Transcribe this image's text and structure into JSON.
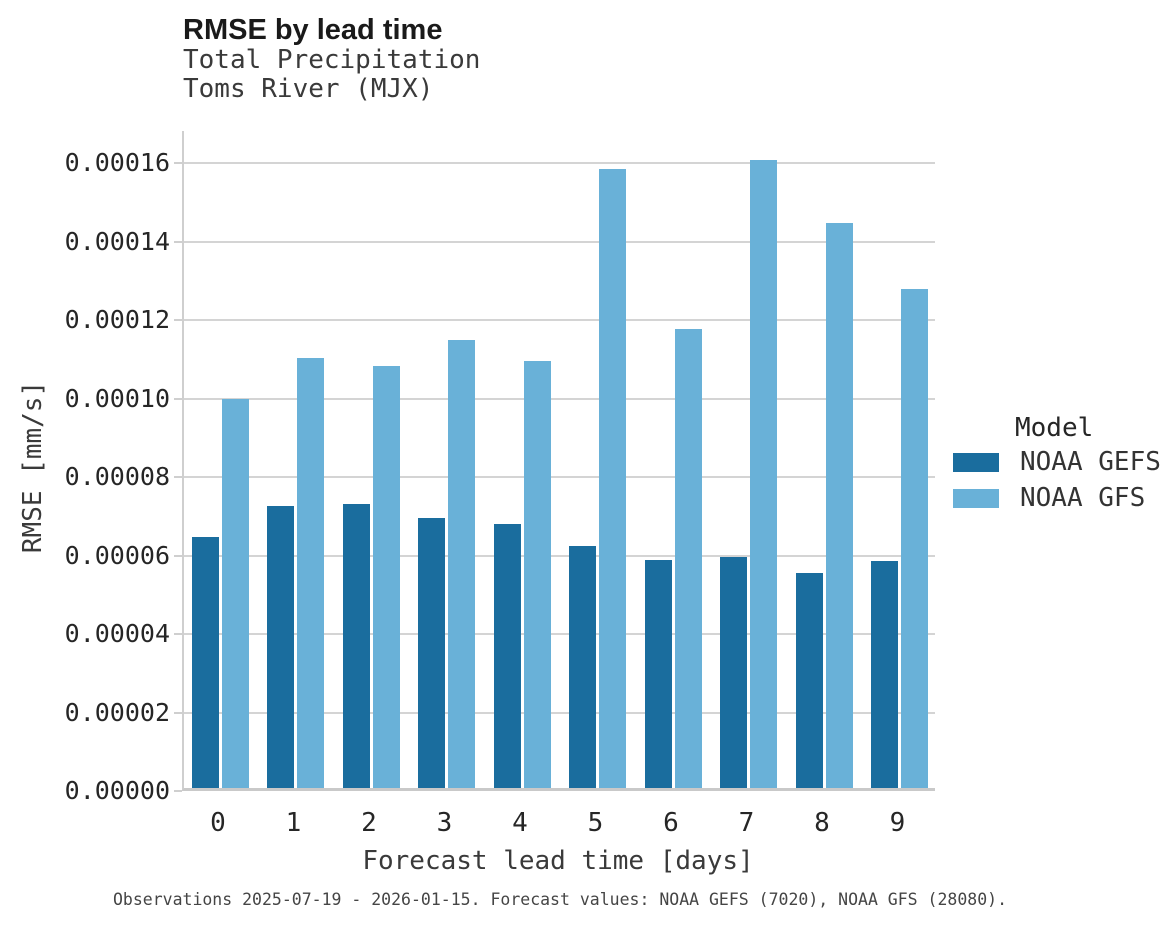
{
  "header": {
    "title": "RMSE by lead time",
    "subtitle_line1": "Total Precipitation",
    "subtitle_line2": "Toms River (MJX)"
  },
  "legend": {
    "title": "Model",
    "items": [
      {
        "label": "NOAA GEFS",
        "color": "#1a6d9e"
      },
      {
        "label": "NOAA GFS",
        "color": "#69b1d8"
      }
    ]
  },
  "caption": "Observations 2025-07-19 - 2026-01-15. Forecast values: NOAA GEFS (7020), NOAA GFS (28080).",
  "colors": {
    "gefs_bar": "#1a6d9e",
    "gfs_bar": "#69b1d8",
    "gridline": "#d4d4d4",
    "axis_spine": "#cfcfcf"
  },
  "chart_data": {
    "type": "bar",
    "title": "RMSE by lead time",
    "subtitle": [
      "Total Precipitation",
      "Toms River (MJX)"
    ],
    "xlabel": "Forecast lead time [days]",
    "ylabel": "RMSE [mm/s]",
    "categories": [
      "0",
      "1",
      "2",
      "3",
      "4",
      "5",
      "6",
      "7",
      "8",
      "9"
    ],
    "series": [
      {
        "name": "NOAA GEFS",
        "color": "#1a6d9e",
        "values": [
          6.39e-05,
          7.18e-05,
          7.24e-05,
          6.88e-05,
          6.73e-05,
          6.17e-05,
          5.81e-05,
          5.89e-05,
          5.48e-05,
          5.78e-05
        ]
      },
      {
        "name": "NOAA GFS",
        "color": "#69b1d8",
        "values": [
          9.92e-05,
          0.0001096,
          0.0001075,
          0.0001141,
          0.0001088,
          0.0001577,
          0.0001169,
          0.00016,
          0.000144,
          0.0001271
        ]
      }
    ],
    "ylim": [
      0,
      0.0001682
    ],
    "yticks": [
      0.0,
      2e-05,
      4e-05,
      6e-05,
      8e-05,
      0.0001,
      0.00012,
      0.00014,
      0.00016
    ],
    "ytick_labels": [
      "0.00000",
      "0.00002",
      "0.00004",
      "0.00006",
      "0.00008",
      "0.00010",
      "0.00012",
      "0.00014",
      "0.00016"
    ],
    "grid": "horizontal",
    "legend_title": "Model",
    "legend_position": "right"
  }
}
